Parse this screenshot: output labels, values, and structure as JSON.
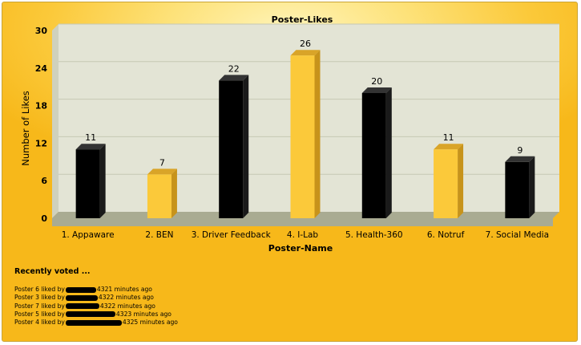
{
  "chart_data": {
    "type": "bar",
    "title": "Poster-Likes",
    "xlabel": "Poster-Name",
    "ylabel": "Number of Likes",
    "ylim": [
      0,
      30
    ],
    "yticks": [
      0,
      6,
      12,
      18,
      24,
      30
    ],
    "grid": true,
    "categories": [
      "1. Appaware",
      "2. BEN",
      "3. Driver Feedback",
      "4. I-Lab",
      "5. Health-360",
      "6. Notruf",
      "7. Social Media"
    ],
    "values": [
      11,
      7,
      22,
      26,
      20,
      11,
      9
    ],
    "bar_colors": [
      "#000000",
      "#fbc93a",
      "#000000",
      "#fbc93a",
      "#000000",
      "#fbc93a",
      "#000000"
    ]
  },
  "recent": {
    "title": "Recently voted ...",
    "entries": [
      {
        "prefix": "Poster 6 liked by",
        "suffix": "4321 minutes ago"
      },
      {
        "prefix": "Poster 3 liked by",
        "suffix": "4322 minutes ago"
      },
      {
        "prefix": "Poster 7 liked by",
        "suffix": "4322 minutes ago"
      },
      {
        "prefix": "Poster 5 liked by",
        "suffix": "4323 minutes ago"
      },
      {
        "prefix": "Poster 4 liked by",
        "suffix": "4325 minutes ago"
      }
    ]
  },
  "colors": {
    "plot_bg": "#e3e4d5",
    "floor": "#a9ab92",
    "grid": "#c6c8b4",
    "dark_bar": "#000000",
    "light_bar": "#fbc93a"
  }
}
